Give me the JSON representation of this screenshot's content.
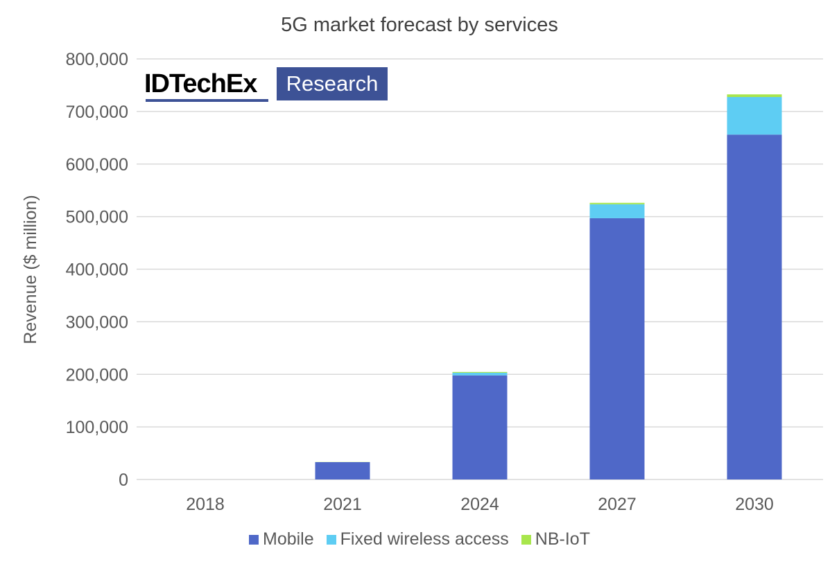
{
  "chart_data": {
    "type": "bar",
    "stacked": true,
    "title": "5G market forecast by services",
    "xlabel": "",
    "ylabel": "Revenue ($ million)",
    "ylim": [
      0,
      800000
    ],
    "yticks": [
      "0",
      "100,000",
      "200,000",
      "300,000",
      "400,000",
      "500,000",
      "600,000",
      "700,000",
      "800,000"
    ],
    "ytick_values": [
      0,
      100000,
      200000,
      300000,
      400000,
      500000,
      600000,
      700000,
      800000
    ],
    "grid": true,
    "legend_position": "bottom",
    "categories": [
      "2018",
      "2021",
      "2024",
      "2027",
      "2030"
    ],
    "series": [
      {
        "name": "Mobile",
        "color": "#4f68c8",
        "values": [
          0,
          33000,
          198000,
          497000,
          656000
        ]
      },
      {
        "name": "Fixed wireless access",
        "color": "#5ecdf3",
        "values": [
          0,
          0,
          5000,
          26500,
          71500
        ]
      },
      {
        "name": "NB-IoT",
        "color": "#a8e64c",
        "values": [
          0,
          300,
          1500,
          2700,
          5000
        ]
      }
    ]
  },
  "logo": {
    "brand": "IDTechEx",
    "tag": "Research",
    "color": "#3d5296"
  }
}
